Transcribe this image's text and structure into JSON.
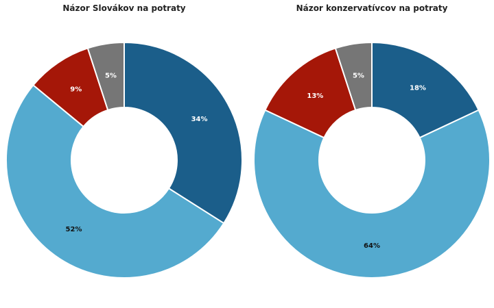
{
  "chart_data": [
    {
      "type": "donut",
      "title": "Názor Slovákov na potraty",
      "values": [
        34,
        52,
        9,
        5
      ],
      "value_labels": [
        "34%",
        "52%",
        "9%",
        "5%"
      ],
      "colors": [
        "#1b5e8a",
        "#54aacf",
        "#a51708",
        "#767676"
      ]
    },
    {
      "type": "donut",
      "title": "Názor konzervatívcov na potraty",
      "values": [
        18,
        64,
        13,
        5
      ],
      "value_labels": [
        "18%",
        "64%",
        "13%",
        "5%"
      ],
      "colors": [
        "#1b5e8a",
        "#54aacf",
        "#a51708",
        "#767676"
      ]
    }
  ]
}
